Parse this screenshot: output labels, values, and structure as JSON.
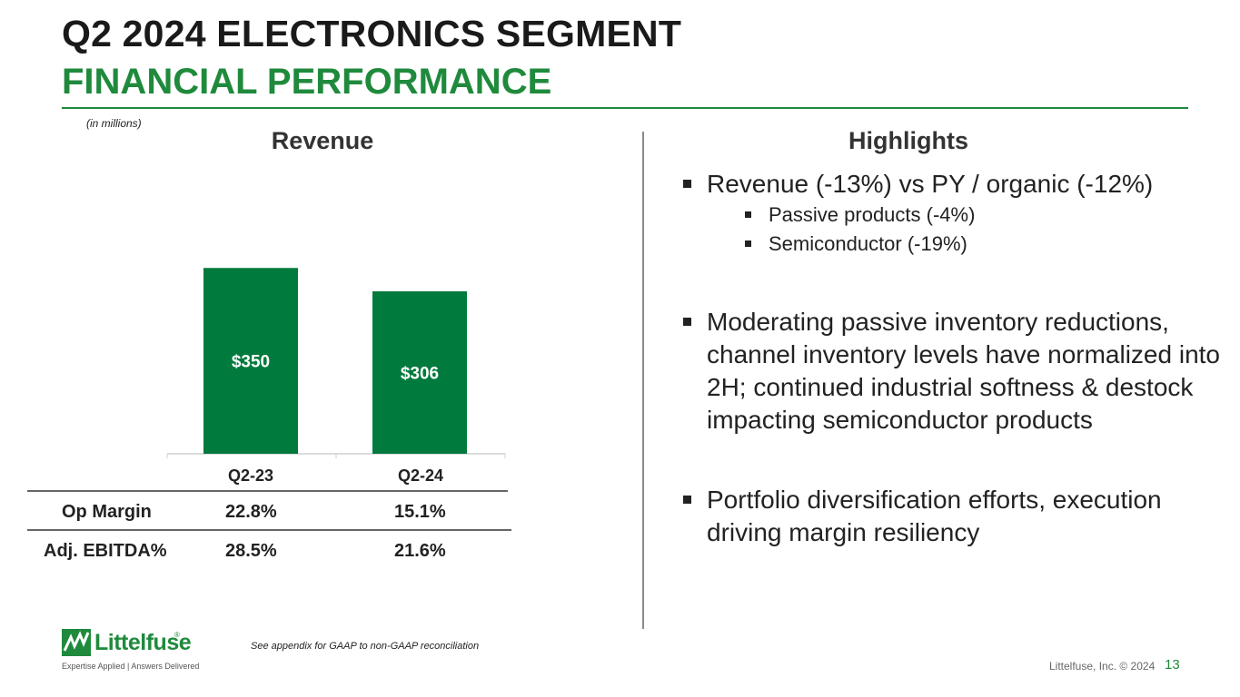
{
  "header": {
    "title": "Q2 2024 ELECTRONICS SEGMENT",
    "subtitle": "FINANCIAL PERFORMANCE",
    "units_note": "(in millions)"
  },
  "colors": {
    "brand_green": "#1f8a3c",
    "bar_green": "#007a3d"
  },
  "chart_data": {
    "type": "bar",
    "title": "Revenue",
    "categories": [
      "Q2-23",
      "Q2-24"
    ],
    "values": [
      350,
      306
    ],
    "data_labels": [
      "$350",
      "$306"
    ],
    "xlabel": "",
    "ylabel": "",
    "ylim": [
      0,
      400
    ],
    "unit": "$ millions",
    "grid": false
  },
  "metrics_table": {
    "rows": [
      {
        "label": "Op Margin",
        "values": [
          "22.8%",
          "15.1%"
        ]
      },
      {
        "label": "Adj. EBITDA%",
        "values": [
          "28.5%",
          "21.6%"
        ]
      }
    ]
  },
  "highlights": {
    "heading": "Highlights",
    "bullets": [
      {
        "text": "Revenue (-13%) vs PY / organic (-12%)",
        "sub": [
          "Passive products (-4%)",
          "Semiconductor (-19%)"
        ]
      },
      {
        "text": "Moderating passive inventory reductions, channel inventory levels have normalized into 2H; continued industrial softness & destock impacting semiconductor products",
        "sub": []
      },
      {
        "text": "Portfolio diversification efforts, execution driving margin resiliency",
        "sub": []
      }
    ]
  },
  "footer": {
    "logo_text": "Littelfuse",
    "registered_mark": "®",
    "tagline": "Expertise Applied | Answers Delivered",
    "footnote": "See appendix for GAAP to non-GAAP reconciliation",
    "copyright": "Littelfuse, Inc. © 2024",
    "page_number": "13"
  }
}
